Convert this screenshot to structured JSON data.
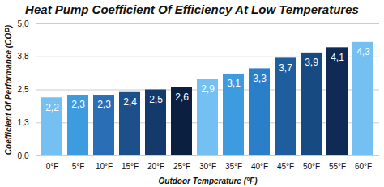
{
  "chart_data": {
    "type": "bar",
    "title": "Heat Pump Coefficient Of Efficiency At Low Temperatures",
    "x_label": "Outdoor Temperature (°F)",
    "y_label": "Coefficient Of Performance (COP)",
    "categories": [
      "0°F",
      "5°F",
      "10°F",
      "15°F",
      "20°F",
      "25°F",
      "30°F",
      "35°F",
      "40°F",
      "45°F",
      "50°F",
      "55°F",
      "60°F"
    ],
    "values": [
      2.2,
      2.3,
      2.3,
      2.4,
      2.5,
      2.6,
      2.9,
      3.1,
      3.3,
      3.7,
      3.9,
      4.1,
      4.3
    ],
    "value_labels": [
      "2,2",
      "2,3",
      "2,3",
      "2,4",
      "2,5",
      "2,6",
      "2,9",
      "3,1",
      "3,3",
      "3,7",
      "3,9",
      "4,1",
      "4,3"
    ],
    "colors": [
      "#74c0f2",
      "#3d9be0",
      "#2a6fb5",
      "#1d4f8a",
      "#133a6b",
      "#0b1f40",
      "#74c0f2",
      "#3d9be0",
      "#2a7fc8",
      "#1e5e9f",
      "#174a80",
      "#0f2a55",
      "#74c0f2"
    ],
    "ylim": [
      0,
      5
    ],
    "yticks": [
      {
        "value": 0,
        "label": "0,0"
      },
      {
        "value": 1.25,
        "label": "1,3"
      },
      {
        "value": 2.5,
        "label": "2,5"
      },
      {
        "value": 3.75,
        "label": "3,8"
      },
      {
        "value": 5,
        "label": "5,0"
      }
    ],
    "grid": true,
    "data_labels": true
  }
}
